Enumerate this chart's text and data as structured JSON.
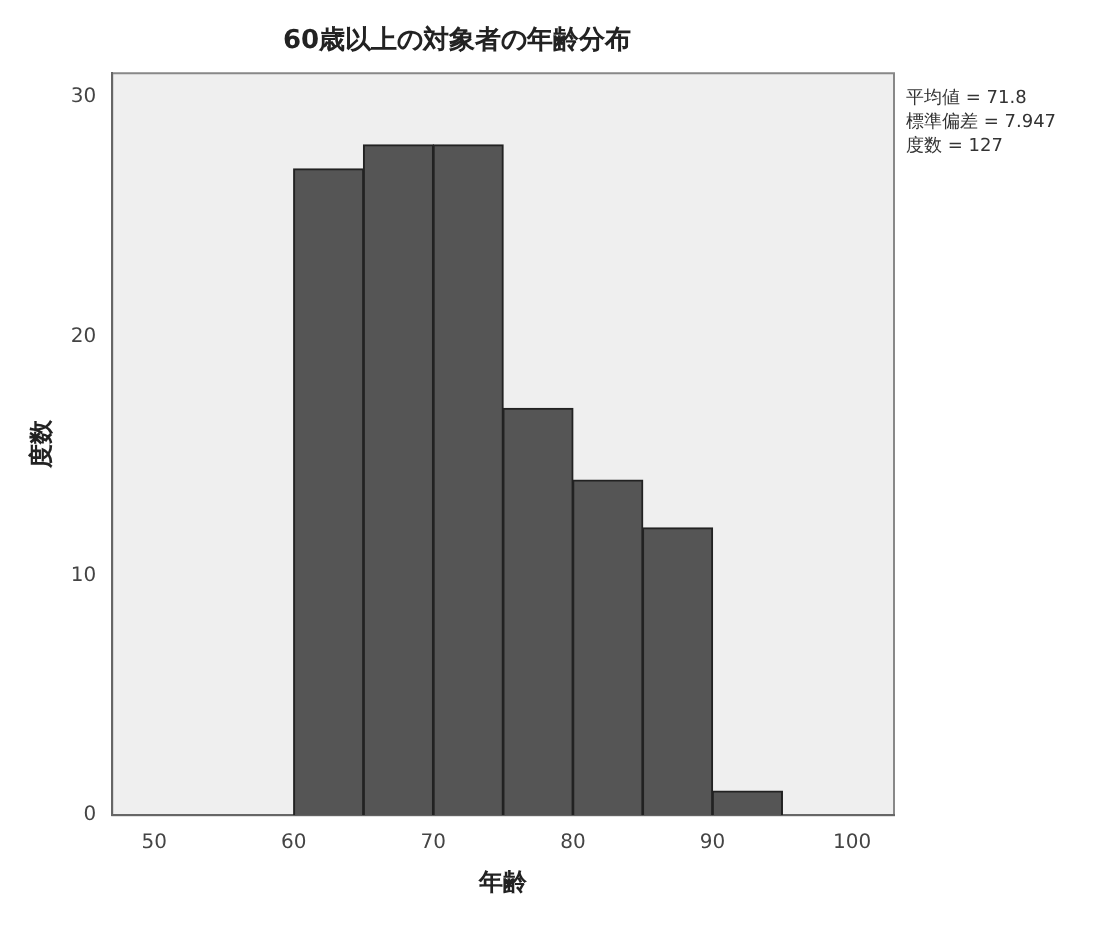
{
  "chart_data": {
    "type": "histogram",
    "title": "60歳以上の対象者の年齢分布",
    "xlabel": "年齢",
    "ylabel": "度数",
    "bins": [
      60,
      65,
      70,
      75,
      80,
      85,
      90,
      95
    ],
    "values": [
      27,
      28,
      28,
      17,
      14,
      12,
      1
    ],
    "color": "#555555",
    "xlim": [
      47,
      103
    ],
    "xticks": [
      50,
      60,
      70,
      80,
      90,
      100
    ],
    "ylim": [
      0,
      31
    ],
    "yticks": [
      0,
      10,
      20,
      30
    ],
    "grid": false,
    "legend": false,
    "annotations": [
      "平均値 = 71.8",
      "標準偏差 = 7.947",
      "度数 = 127"
    ]
  }
}
